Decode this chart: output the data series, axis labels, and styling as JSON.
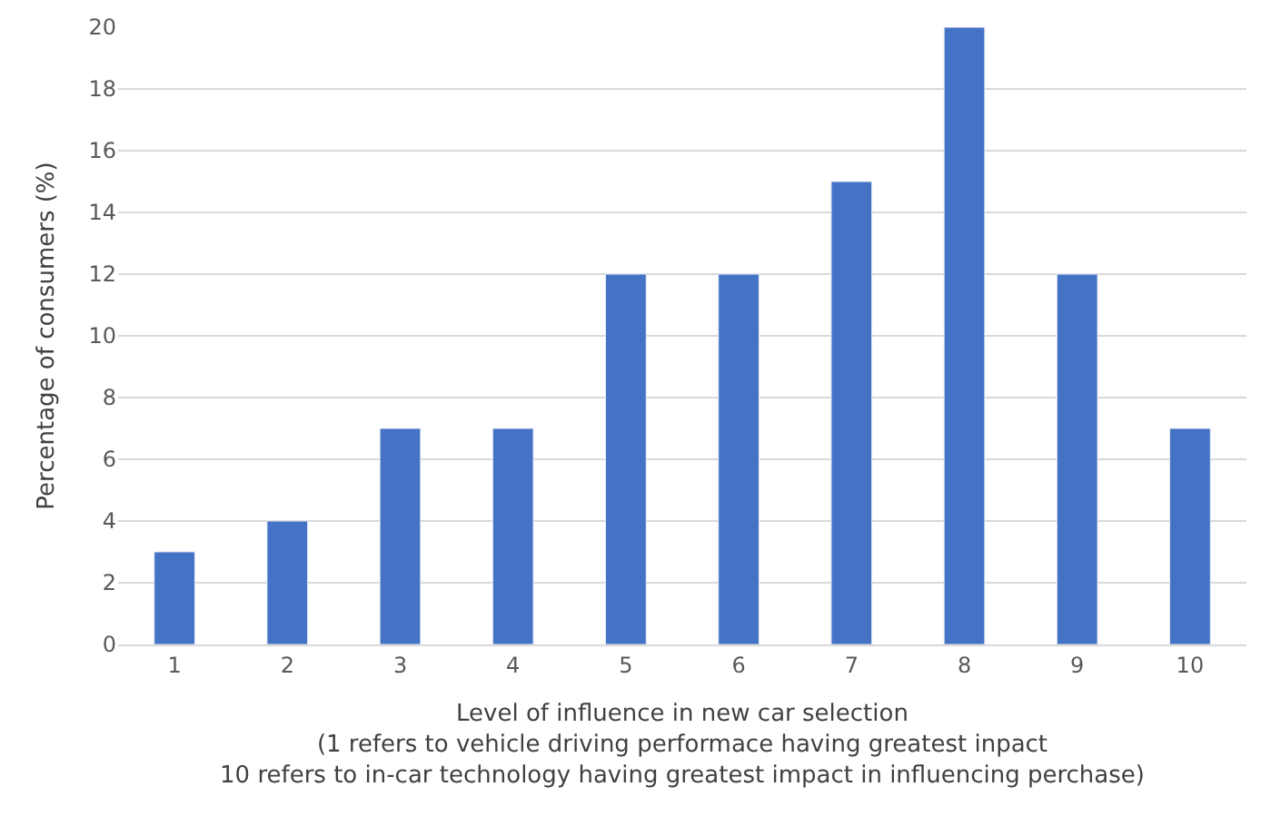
{
  "chart_data": {
    "type": "bar",
    "categories": [
      "1",
      "2",
      "3",
      "4",
      "5",
      "6",
      "7",
      "8",
      "9",
      "10"
    ],
    "values": [
      3,
      4,
      7,
      7,
      12,
      12,
      15,
      20,
      12,
      7
    ],
    "color": "#4472c4",
    "ylabel": "Percentage of consumers (%)",
    "xlabel": "Level of influence in new car selection\n(1 refers to vehicle driving performace having greatest inpact\n10 refers to in-car technology having greatest impact in influencing perchase)",
    "ylim": [
      0,
      20
    ],
    "yticks": [
      0,
      2,
      4,
      6,
      8,
      10,
      12,
      14,
      16,
      18,
      20
    ],
    "grid": "y"
  }
}
